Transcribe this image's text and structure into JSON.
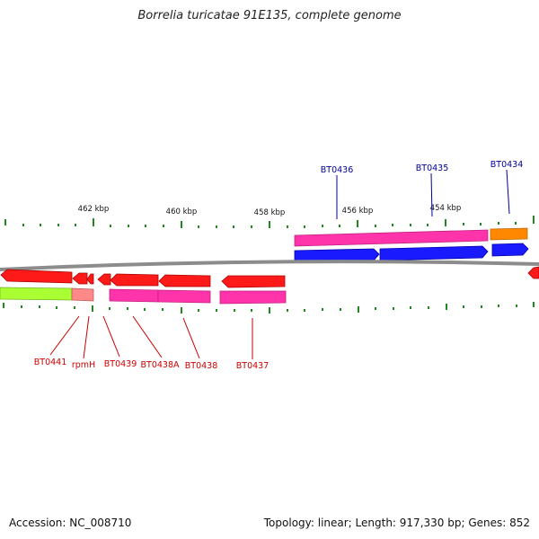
{
  "title": "Borrelia turicatae 91E135, complete genome",
  "footer": {
    "accession": "Accession: NC_008710",
    "topology": "Topology: linear; Length: 917,330 bp; Genes: 852"
  },
  "ticks": [
    {
      "label": "462 kbp"
    },
    {
      "label": "460 kbp"
    },
    {
      "label": "458 kbp"
    },
    {
      "label": "456 kbp"
    },
    {
      "label": "454 kbp"
    }
  ],
  "gene_labels_top": [
    {
      "id": "BT0436"
    },
    {
      "id": "BT0435"
    },
    {
      "id": "BT0434"
    }
  ],
  "gene_labels_bottom": [
    {
      "id": "BT0441"
    },
    {
      "id": "rpmH"
    },
    {
      "id": "BT0439"
    },
    {
      "id": "BT0438A"
    },
    {
      "id": "BT0438"
    },
    {
      "id": "BT0437"
    }
  ],
  "colors": {
    "forward_gene": "#1a1aff",
    "reverse_gene": "#ff1a1a",
    "cds_feature": "#ff33aa",
    "orange_feature": "#ff8800",
    "green_feature": "#aaff33",
    "label_top": "#000099",
    "label_bottom": "#cc0000",
    "tick": "#228822",
    "backbone": "#888888"
  }
}
